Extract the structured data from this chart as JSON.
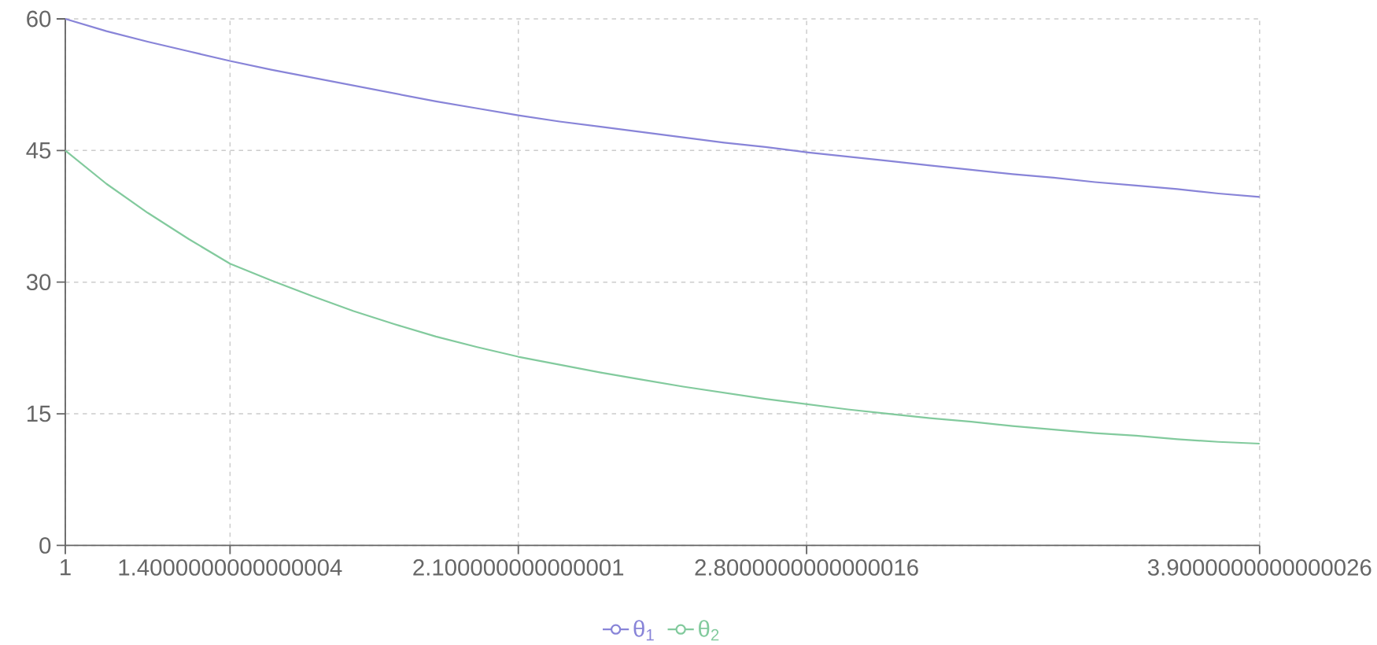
{
  "chart_data": {
    "type": "line",
    "categories": [
      "1",
      null,
      null,
      null,
      "1.4000000000000004",
      null,
      null,
      null,
      null,
      null,
      null,
      "2.100000000000001",
      null,
      null,
      null,
      null,
      null,
      null,
      "2.8000000000000016",
      null,
      null,
      null,
      null,
      null,
      null,
      null,
      null,
      null,
      null,
      "3.9000000000000026"
    ],
    "series": [
      {
        "name": "θ$_{1}$",
        "color": "#8884d8",
        "values": [
          60,
          58.6,
          57.4,
          56.3,
          55.2,
          54.2,
          53.3,
          52.4,
          51.5,
          50.6,
          49.8,
          49.0,
          48.3,
          47.7,
          47.1,
          46.5,
          45.9,
          45.4,
          44.8,
          44.3,
          43.8,
          43.3,
          42.8,
          42.3,
          41.9,
          41.4,
          41.0,
          40.6,
          40.1,
          39.7
        ]
      },
      {
        "name": "θ$_{2}$",
        "color": "#82ca9d",
        "values": [
          45,
          41.2,
          37.9,
          34.9,
          32.1,
          30.2,
          28.4,
          26.7,
          25.2,
          23.8,
          22.6,
          21.5,
          20.6,
          19.7,
          18.9,
          18.1,
          17.4,
          16.7,
          16.1,
          15.5,
          15.0,
          14.5,
          14.1,
          13.6,
          13.2,
          12.8,
          12.5,
          12.1,
          11.8,
          11.6
        ]
      }
    ],
    "ylim": [
      0,
      60
    ],
    "yticks": [
      0,
      15,
      30,
      45,
      60
    ],
    "grid": true,
    "legend": "bottom",
    "marker": "none",
    "line_style": "solid"
  }
}
